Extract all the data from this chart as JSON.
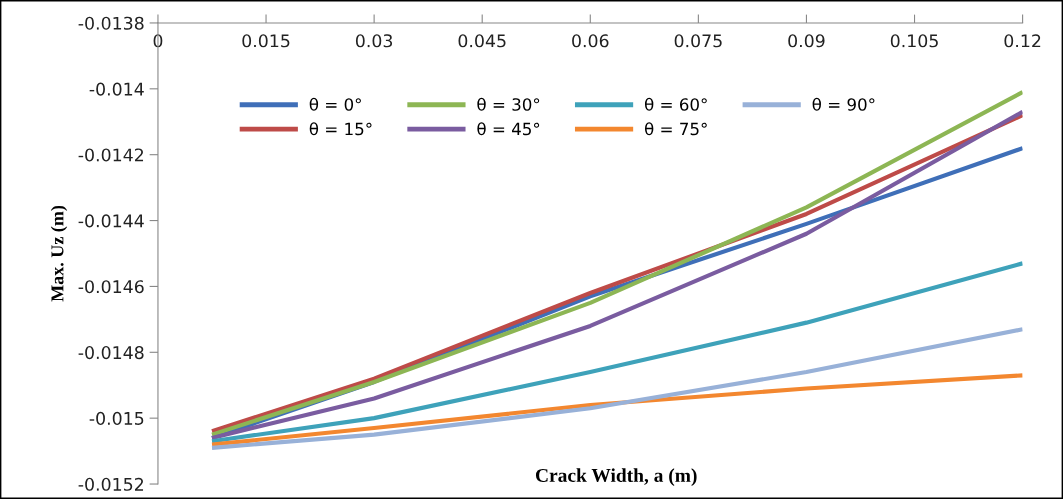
{
  "chart_data": {
    "type": "line",
    "xlabel": "Crack Width, a (m)",
    "ylabel": "Max. Uz (m)",
    "x": [
      0.0075,
      0.03,
      0.06,
      0.09,
      0.12
    ],
    "xlim": [
      0,
      0.12
    ],
    "xticks": [
      0,
      0.015,
      0.03,
      0.045,
      0.06,
      0.075,
      0.09,
      0.105,
      0.12
    ],
    "ylim": [
      -0.0152,
      -0.0138
    ],
    "yticks": [
      -0.0152,
      -0.015,
      -0.0148,
      -0.0146,
      -0.0144,
      -0.0142,
      -0.014,
      -0.0138
    ],
    "grid": false,
    "legend": "top left",
    "marker": "none",
    "line_style": "solid",
    "series": [
      {
        "name": "θ = 0°",
        "color": "#3f6fb8",
        "values": [
          -0.01506,
          -0.01489,
          -0.01463,
          -0.01441,
          -0.01418
        ]
      },
      {
        "name": "θ = 15°",
        "color": "#be4b48",
        "values": [
          -0.01504,
          -0.01488,
          -0.01462,
          -0.01438,
          -0.01408
        ]
      },
      {
        "name": "θ = 30°",
        "color": "#8db654",
        "values": [
          -0.01505,
          -0.01489,
          -0.01465,
          -0.01436,
          -0.01401
        ]
      },
      {
        "name": "θ = 45°",
        "color": "#7a5ca0",
        "values": [
          -0.01506,
          -0.01494,
          -0.01472,
          -0.01444,
          -0.01407
        ]
      },
      {
        "name": "θ = 60°",
        "color": "#3ea2ba",
        "values": [
          -0.01507,
          -0.015,
          -0.01486,
          -0.01471,
          -0.01453
        ]
      },
      {
        "name": "θ = 75°",
        "color": "#f3872f",
        "values": [
          -0.01508,
          -0.01503,
          -0.01496,
          -0.01491,
          -0.01487
        ]
      },
      {
        "name": "θ = 90°",
        "color": "#98b1d8",
        "values": [
          -0.01509,
          -0.01505,
          -0.01497,
          -0.01486,
          -0.01473
        ]
      }
    ]
  }
}
